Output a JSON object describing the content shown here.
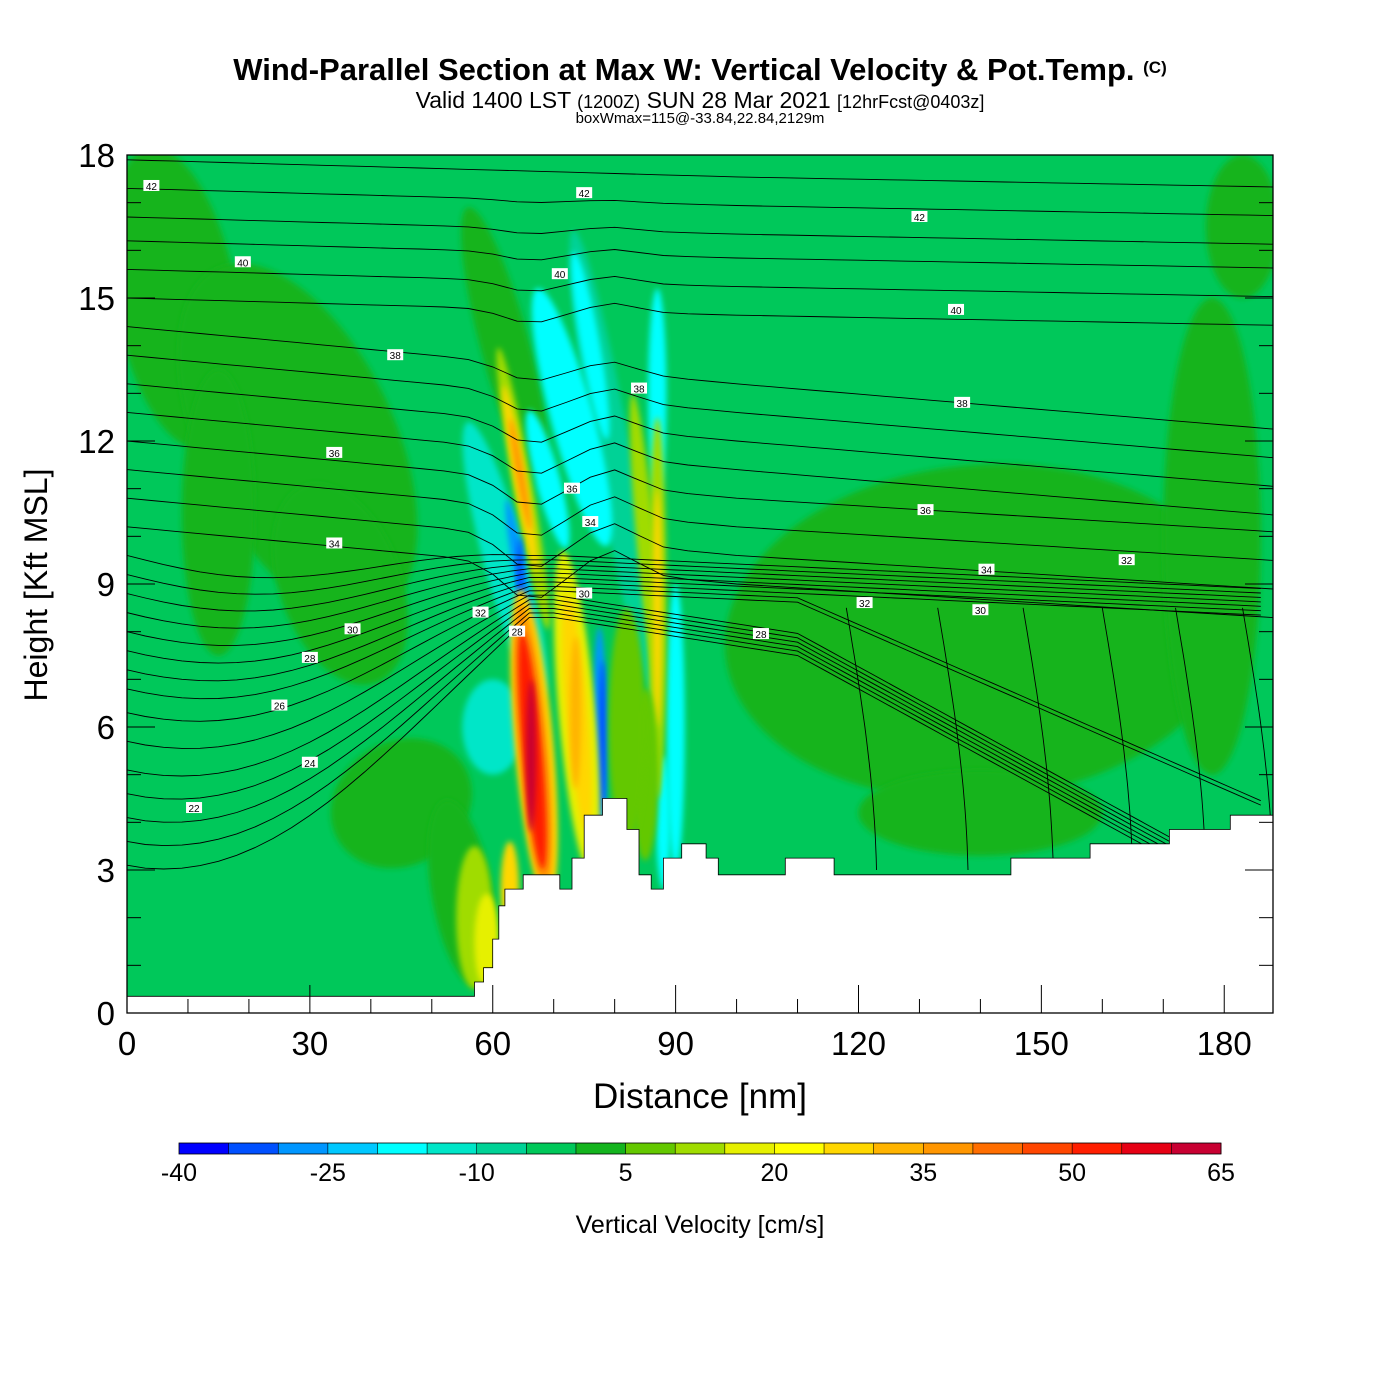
{
  "title": {
    "main": "Wind-Parallel Section at Max W: Vertical Velocity & Pot.Temp.",
    "copyright": "(C)",
    "valid_prefix": "Valid 1400 LST",
    "valid_utc": "(1200Z)",
    "valid_date": "SUN 28 Mar 2021",
    "forecast": "[12hrFcst@0403z]",
    "box_info": "boxWmax=115@-33.84,22.84,2129m"
  },
  "chart_data": {
    "type": "heatmap",
    "xlabel": "Distance [nm]",
    "ylabel": "Height [Kft MSL]",
    "xlim": [
      0,
      188
    ],
    "ylim": [
      0,
      18
    ],
    "x_ticks": [
      0,
      30,
      60,
      90,
      120,
      150,
      180
    ],
    "y_ticks": [
      0,
      3,
      6,
      9,
      12,
      15,
      18
    ],
    "colorbar": {
      "label": "Vertical Velocity [cm/s]",
      "tick_labels": [
        "-40",
        "-25",
        "-10",
        "5",
        "20",
        "35",
        "50",
        "65"
      ],
      "bins": [
        -40,
        75
      ],
      "colors": [
        "#0000ff",
        "#0050ff",
        "#0096ff",
        "#00c8ff",
        "#00ffff",
        "#00e6c8",
        "#00d296",
        "#00c85a",
        "#14b41e",
        "#64c800",
        "#a0dc00",
        "#e6f000",
        "#ffff00",
        "#ffd700",
        "#ffb400",
        "#ff9600",
        "#ff6e00",
        "#ff4600",
        "#ff1e00",
        "#e60014",
        "#c80032"
      ]
    },
    "background_fill": "#00c85a",
    "terrain": [
      [
        0,
        0
      ],
      [
        0,
        0.35
      ],
      [
        57,
        0.35
      ],
      [
        57,
        0.65
      ],
      [
        58.5,
        0.65
      ],
      [
        58.5,
        0.95
      ],
      [
        60,
        0.95
      ],
      [
        60,
        1.55
      ],
      [
        61,
        1.55
      ],
      [
        61,
        2.25
      ],
      [
        62,
        2.25
      ],
      [
        62,
        2.6
      ],
      [
        65,
        2.6
      ],
      [
        65,
        2.9
      ],
      [
        71,
        2.9
      ],
      [
        71,
        2.6
      ],
      [
        73,
        2.6
      ],
      [
        73,
        3.25
      ],
      [
        75,
        3.25
      ],
      [
        75,
        4.15
      ],
      [
        78,
        4.15
      ],
      [
        78,
        4.5
      ],
      [
        82,
        4.5
      ],
      [
        82,
        3.85
      ],
      [
        84,
        3.85
      ],
      [
        84,
        2.9
      ],
      [
        86,
        2.9
      ],
      [
        86,
        2.6
      ],
      [
        88,
        2.6
      ],
      [
        88,
        3.25
      ],
      [
        91,
        3.25
      ],
      [
        91,
        3.55
      ],
      [
        95,
        3.55
      ],
      [
        95,
        3.25
      ],
      [
        97,
        3.25
      ],
      [
        97,
        2.9
      ],
      [
        108,
        2.9
      ],
      [
        108,
        3.25
      ],
      [
        116,
        3.25
      ],
      [
        116,
        2.9
      ],
      [
        145,
        2.9
      ],
      [
        145,
        3.25
      ],
      [
        158,
        3.25
      ],
      [
        158,
        3.55
      ],
      [
        171,
        3.55
      ],
      [
        171,
        3.85
      ],
      [
        181,
        3.85
      ],
      [
        181,
        4.15
      ],
      [
        188,
        4.15
      ],
      [
        188,
        0
      ]
    ],
    "annotations": [
      {
        "text": "42",
        "x": 4,
        "y": 17.35
      },
      {
        "text": "42",
        "x": 75,
        "y": 17.2
      },
      {
        "text": "42",
        "x": 130,
        "y": 16.7
      },
      {
        "text": "40",
        "x": 19,
        "y": 15.75
      },
      {
        "text": "40",
        "x": 71,
        "y": 15.5
      },
      {
        "text": "40",
        "x": 136,
        "y": 14.75
      },
      {
        "text": "38",
        "x": 44,
        "y": 13.8
      },
      {
        "text": "38",
        "x": 84,
        "y": 13.1
      },
      {
        "text": "38",
        "x": 137,
        "y": 12.8
      },
      {
        "text": "36",
        "x": 34,
        "y": 11.75
      },
      {
        "text": "36",
        "x": 73,
        "y": 11
      },
      {
        "text": "36",
        "x": 131,
        "y": 10.55
      },
      {
        "text": "34",
        "x": 34,
        "y": 9.85
      },
      {
        "text": "34",
        "x": 76,
        "y": 10.3
      },
      {
        "text": "34",
        "x": 141,
        "y": 9.3
      },
      {
        "text": "32",
        "x": 58,
        "y": 8.4
      },
      {
        "text": "32",
        "x": 121,
        "y": 8.6
      },
      {
        "text": "32",
        "x": 164,
        "y": 9.5
      },
      {
        "text": "30",
        "x": 37,
        "y": 8.05
      },
      {
        "text": "30",
        "x": 75,
        "y": 8.8
      },
      {
        "text": "30",
        "x": 140,
        "y": 8.45
      },
      {
        "text": "28",
        "x": 30,
        "y": 7.45
      },
      {
        "text": "28",
        "x": 64,
        "y": 8
      },
      {
        "text": "28",
        "x": 104,
        "y": 7.95
      },
      {
        "text": "26",
        "x": 25,
        "y": 6.45
      },
      {
        "text": "24",
        "x": 30,
        "y": 5.25
      },
      {
        "text": "22",
        "x": 11,
        "y": 4.3
      }
    ]
  }
}
